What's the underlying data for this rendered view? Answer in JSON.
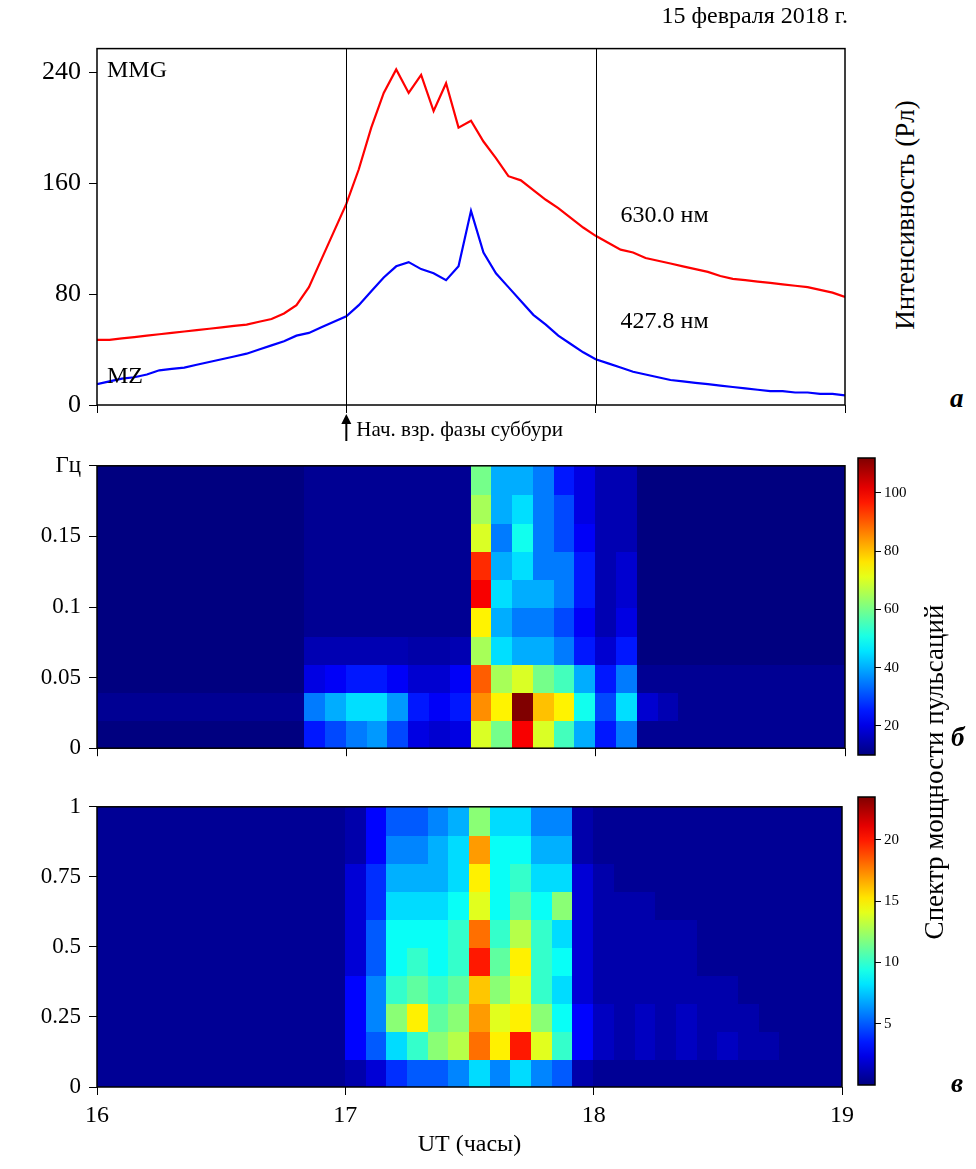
{
  "chart_data": [
    {
      "type": "line",
      "panel": "а",
      "title": "15 февраля 2018 г.",
      "y_label": "Интенсивность (Рл)",
      "x": [
        16,
        16.05,
        16.1,
        16.15,
        16.2,
        16.25,
        16.3,
        16.35,
        16.4,
        16.45,
        16.5,
        16.55,
        16.6,
        16.65,
        16.7,
        16.75,
        16.8,
        16.85,
        16.9,
        16.95,
        17,
        17.05,
        17.1,
        17.15,
        17.2,
        17.25,
        17.3,
        17.35,
        17.4,
        17.45,
        17.5,
        17.55,
        17.6,
        17.65,
        17.7,
        17.75,
        17.8,
        17.85,
        17.9,
        17.95,
        18,
        18.05,
        18.1,
        18.15,
        18.2,
        18.25,
        18.3,
        18.35,
        18.4,
        18.45,
        18.5,
        18.55,
        18.6,
        18.65,
        18.7,
        18.75,
        18.8,
        18.85,
        18.9,
        18.95,
        19
      ],
      "series": [
        {
          "name": "630.0 нм",
          "station": "MMG",
          "color": "#ff0000",
          "values": [
            47,
            47,
            48,
            49,
            50,
            51,
            52,
            53,
            54,
            55,
            56,
            57,
            58,
            60,
            62,
            66,
            72,
            85,
            105,
            125,
            145,
            170,
            200,
            225,
            242,
            225,
            238,
            212,
            232,
            200,
            205,
            190,
            178,
            165,
            162,
            155,
            148,
            142,
            135,
            128,
            122,
            117,
            112,
            110,
            106,
            104,
            102,
            100,
            98,
            96,
            93,
            91,
            90,
            89,
            88,
            87,
            86,
            85,
            83,
            81,
            78
          ]
        },
        {
          "name": "427.8 нм",
          "station": "MZ",
          "color": "#0000ff",
          "values": [
            15,
            17,
            19,
            20,
            22,
            25,
            26,
            27,
            29,
            31,
            33,
            35,
            37,
            40,
            43,
            46,
            50,
            52,
            56,
            60,
            64,
            72,
            82,
            92,
            100,
            103,
            98,
            95,
            90,
            100,
            140,
            110,
            95,
            85,
            75,
            65,
            58,
            50,
            44,
            38,
            33,
            30,
            27,
            24,
            22,
            20,
            18,
            17,
            16,
            15,
            14,
            13,
            12,
            11,
            10,
            10,
            9,
            9,
            8,
            8,
            7
          ]
        }
      ],
      "vlines": [
        17,
        18
      ],
      "annotation": {
        "text": "Нач. взр. фазы суббури",
        "x": 17
      },
      "xlim": [
        16,
        19
      ],
      "xticks": [
        16,
        17,
        18,
        19
      ],
      "ylim": [
        0,
        257
      ],
      "yticks": [
        0,
        80,
        160,
        240
      ],
      "grid": false,
      "tick_labels": "y"
    },
    {
      "type": "heatmap",
      "panel": "б",
      "x_bins": [
        16,
        16.0833,
        16.1667,
        16.25,
        16.3333,
        16.4167,
        16.5,
        16.5833,
        16.6667,
        16.75,
        16.8333,
        16.9167,
        17,
        17.0833,
        17.1667,
        17.25,
        17.3333,
        17.4167,
        17.5,
        17.5833,
        17.6667,
        17.75,
        17.8333,
        17.9167,
        18,
        18.0833,
        18.1667,
        18.25,
        18.3333,
        18.4167,
        18.5,
        18.5833,
        18.6667,
        18.75,
        18.8333,
        18.9167,
        19
      ],
      "y_bins": [
        0,
        0.02,
        0.04,
        0.06,
        0.08,
        0.1,
        0.12,
        0.14,
        0.16,
        0.18,
        0.2
      ],
      "cells": [
        [
          10,
          10,
          10,
          10,
          10,
          10,
          10,
          10,
          10,
          10,
          25,
          30,
          35,
          38,
          30,
          20,
          18,
          20,
          70,
          60,
          100,
          70,
          55,
          40,
          25,
          35,
          12,
          12,
          12,
          12,
          12,
          12,
          12,
          12,
          12,
          12
        ],
        [
          12,
          12,
          12,
          12,
          12,
          12,
          12,
          12,
          12,
          12,
          35,
          40,
          45,
          45,
          38,
          25,
          22,
          25,
          85,
          75,
          115,
          80,
          75,
          50,
          30,
          45,
          18,
          15,
          12,
          12,
          12,
          12,
          12,
          12,
          12,
          12
        ],
        [
          10,
          10,
          10,
          10,
          10,
          10,
          10,
          10,
          10,
          10,
          20,
          22,
          25,
          25,
          22,
          18,
          18,
          22,
          90,
          65,
          70,
          60,
          55,
          40,
          25,
          35,
          12,
          12,
          12,
          12,
          12,
          12,
          12,
          12,
          12,
          12
        ],
        [
          10,
          10,
          10,
          10,
          10,
          10,
          10,
          10,
          10,
          10,
          15,
          15,
          15,
          15,
          15,
          14,
          14,
          15,
          65,
          45,
          40,
          40,
          35,
          25,
          18,
          25,
          10,
          10,
          10,
          10,
          10,
          10,
          10,
          10,
          10,
          10
        ],
        [
          10,
          10,
          10,
          10,
          10,
          10,
          10,
          10,
          10,
          10,
          12,
          12,
          12,
          12,
          12,
          12,
          12,
          12,
          75,
          40,
          35,
          35,
          30,
          22,
          15,
          20,
          10,
          10,
          10,
          10,
          10,
          10,
          10,
          10,
          10,
          10
        ],
        [
          10,
          10,
          10,
          10,
          10,
          10,
          10,
          10,
          10,
          10,
          12,
          12,
          12,
          12,
          12,
          12,
          12,
          12,
          100,
          45,
          40,
          40,
          35,
          25,
          15,
          18,
          10,
          10,
          10,
          10,
          10,
          10,
          10,
          10,
          10,
          10
        ],
        [
          10,
          10,
          10,
          10,
          10,
          10,
          10,
          10,
          10,
          10,
          12,
          12,
          12,
          12,
          12,
          12,
          12,
          12,
          95,
          40,
          45,
          35,
          35,
          25,
          15,
          18,
          10,
          10,
          10,
          10,
          10,
          10,
          10,
          10,
          10,
          10
        ],
        [
          10,
          10,
          10,
          10,
          10,
          10,
          10,
          10,
          10,
          10,
          12,
          12,
          12,
          12,
          12,
          12,
          12,
          12,
          70,
          35,
          50,
          35,
          30,
          22,
          15,
          15,
          10,
          10,
          10,
          10,
          10,
          10,
          10,
          10,
          10,
          10
        ],
        [
          10,
          10,
          10,
          10,
          10,
          10,
          10,
          10,
          10,
          10,
          12,
          12,
          12,
          12,
          12,
          12,
          12,
          12,
          65,
          40,
          45,
          35,
          30,
          20,
          15,
          15,
          10,
          10,
          10,
          10,
          10,
          10,
          10,
          10,
          10,
          10
        ],
        [
          10,
          10,
          10,
          10,
          10,
          10,
          10,
          10,
          10,
          10,
          12,
          12,
          12,
          12,
          12,
          12,
          12,
          12,
          60,
          40,
          40,
          35,
          25,
          20,
          15,
          15,
          10,
          10,
          10,
          10,
          10,
          10,
          10,
          10,
          10,
          10
        ]
      ],
      "colorbar": {
        "clim": [
          10,
          112
        ],
        "ticks": [
          20,
          40,
          60,
          80,
          100
        ],
        "label": "Спектр мощности пульсаций"
      },
      "xlim": [
        16,
        19
      ],
      "xticks": [
        16,
        17,
        18,
        19
      ],
      "ylim": [
        0,
        0.2
      ],
      "yticks": [
        0,
        0.05,
        0.1,
        0.15,
        {
          "value": 0.2,
          "label": "Гц"
        }
      ],
      "grid": false,
      "tick_labels": "y"
    },
    {
      "type": "heatmap",
      "panel": "в",
      "x_label": "UT (часы)",
      "x_bins": [
        16,
        16.0833,
        16.1667,
        16.25,
        16.3333,
        16.4167,
        16.5,
        16.5833,
        16.6667,
        16.75,
        16.8333,
        16.9167,
        17,
        17.0833,
        17.1667,
        17.25,
        17.3333,
        17.4167,
        17.5,
        17.5833,
        17.6667,
        17.75,
        17.8333,
        17.9167,
        18,
        18.0833,
        18.1667,
        18.25,
        18.3333,
        18.4167,
        18.5,
        18.5833,
        18.6667,
        18.75,
        18.8333,
        18.9167,
        19
      ],
      "y_bins": [
        0,
        0.1,
        0.2,
        0.3,
        0.4,
        0.5,
        0.6,
        0.7,
        0.8,
        0.9,
        1
      ],
      "cells": [
        [
          0.5,
          0.5,
          0.5,
          0.5,
          0.5,
          0.5,
          0.5,
          0.5,
          0.5,
          0.5,
          0.5,
          0.5,
          1,
          2,
          4,
          5,
          5,
          6,
          8,
          6,
          8,
          6,
          5,
          1,
          0.5,
          0.5,
          0.5,
          0.5,
          0.5,
          0.5,
          0.5,
          0.5,
          0.5,
          0.5,
          0.5,
          0.5
        ],
        [
          0.5,
          0.5,
          0.5,
          0.5,
          0.5,
          0.5,
          0.5,
          0.5,
          0.5,
          0.5,
          0.5,
          0.5,
          3,
          5,
          8,
          10,
          12,
          13,
          18,
          15,
          20,
          14,
          10,
          3,
          1.5,
          1,
          1.5,
          1,
          1.5,
          1,
          1.5,
          1,
          1,
          0.5,
          0.5,
          0.5
        ],
        [
          0.5,
          0.5,
          0.5,
          0.5,
          0.5,
          0.5,
          0.5,
          0.5,
          0.5,
          0.5,
          0.5,
          0.5,
          3,
          6,
          12,
          15,
          11,
          12,
          17,
          14,
          15,
          12,
          9,
          3,
          1.5,
          1,
          1.5,
          1,
          1.5,
          1,
          1,
          1,
          0.5,
          0.5,
          0.5,
          0.5
        ],
        [
          0.5,
          0.5,
          0.5,
          0.5,
          0.5,
          0.5,
          0.5,
          0.5,
          0.5,
          0.5,
          0.5,
          0.5,
          3,
          6,
          10,
          11,
          10,
          11,
          16,
          12,
          14,
          10,
          8,
          2,
          1,
          1,
          1,
          1,
          1,
          1,
          1,
          0.5,
          0.5,
          0.5,
          0.5,
          0.5
        ],
        [
          0.5,
          0.5,
          0.5,
          0.5,
          0.5,
          0.5,
          0.5,
          0.5,
          0.5,
          0.5,
          0.5,
          0.5,
          2,
          5,
          9,
          10,
          9,
          10,
          20,
          11,
          15,
          10,
          9,
          2,
          1,
          1,
          1,
          1,
          1,
          0.5,
          0.5,
          0.5,
          0.5,
          0.5,
          0.5,
          0.5
        ],
        [
          0.5,
          0.5,
          0.5,
          0.5,
          0.5,
          0.5,
          0.5,
          0.5,
          0.5,
          0.5,
          0.5,
          0.5,
          2,
          5,
          9,
          9,
          9,
          10,
          18,
          10,
          13,
          10,
          8,
          2,
          1,
          1,
          1,
          1,
          1,
          0.5,
          0.5,
          0.5,
          0.5,
          0.5,
          0.5,
          0.5
        ],
        [
          0.5,
          0.5,
          0.5,
          0.5,
          0.5,
          0.5,
          0.5,
          0.5,
          0.5,
          0.5,
          0.5,
          0.5,
          2,
          4,
          8,
          8,
          8,
          9,
          14,
          9,
          11,
          9,
          12,
          2,
          1,
          1,
          1,
          0.5,
          0.5,
          0.5,
          0.5,
          0.5,
          0.5,
          0.5,
          0.5,
          0.5
        ],
        [
          0.5,
          0.5,
          0.5,
          0.5,
          0.5,
          0.5,
          0.5,
          0.5,
          0.5,
          0.5,
          0.5,
          0.5,
          2,
          4,
          7,
          7,
          7,
          8,
          15,
          9,
          10,
          8,
          8,
          2,
          1,
          0.5,
          0.5,
          0.5,
          0.5,
          0.5,
          0.5,
          0.5,
          0.5,
          0.5,
          0.5,
          0.5
        ],
        [
          0.5,
          0.5,
          0.5,
          0.5,
          0.5,
          0.5,
          0.5,
          0.5,
          0.5,
          0.5,
          0.5,
          0.5,
          1,
          3,
          6,
          6,
          7,
          8,
          17,
          9,
          9,
          7,
          7,
          1,
          0.5,
          0.5,
          0.5,
          0.5,
          0.5,
          0.5,
          0.5,
          0.5,
          0.5,
          0.5,
          0.5,
          0.5
        ],
        [
          0.5,
          0.5,
          0.5,
          0.5,
          0.5,
          0.5,
          0.5,
          0.5,
          0.5,
          0.5,
          0.5,
          0.5,
          1,
          3,
          5,
          5,
          6,
          7,
          12,
          8,
          8,
          6,
          6,
          1,
          0.5,
          0.5,
          0.5,
          0.5,
          0.5,
          0.5,
          0.5,
          0.5,
          0.5,
          0.5,
          0.5,
          0.5
        ]
      ],
      "colorbar": {
        "clim": [
          0,
          23.5
        ],
        "ticks": [
          5,
          10,
          15,
          20
        ]
      },
      "xlim": [
        16,
        19
      ],
      "xticks": [
        16,
        17,
        18,
        19
      ],
      "ylim": [
        0,
        1
      ],
      "yticks": [
        0,
        0.25,
        0.5,
        0.75,
        1
      ],
      "grid": false
    }
  ]
}
